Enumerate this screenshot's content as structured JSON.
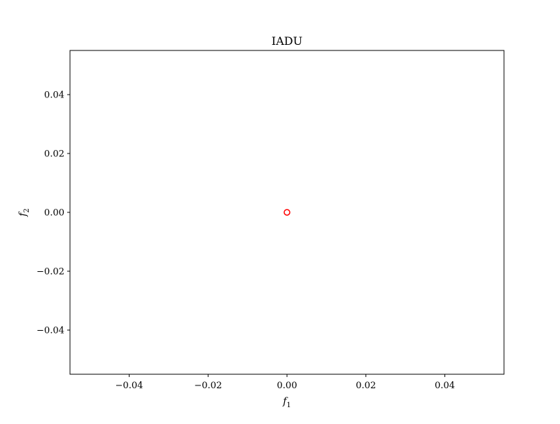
{
  "chart_data": {
    "type": "scatter",
    "title": "IADU",
    "xlabel": "f",
    "xlabel_sub": "1",
    "ylabel": "f",
    "ylabel_sub": "2",
    "xlim": [
      -0.055,
      0.055
    ],
    "ylim": [
      -0.055,
      0.055
    ],
    "xticks": [
      -0.04,
      -0.02,
      0.0,
      0.02,
      0.04
    ],
    "yticks": [
      -0.04,
      -0.02,
      0.0,
      0.02,
      0.04
    ],
    "xtick_labels": [
      "−0.04",
      "−0.02",
      "0.00",
      "0.02",
      "0.04"
    ],
    "ytick_labels": [
      "−0.04",
      "−0.02",
      "0.00",
      "0.02",
      "0.04"
    ],
    "grid": false,
    "series": [
      {
        "marker": "hollow-circle",
        "color": "#ff0000",
        "points": [
          {
            "x": 0.0,
            "y": 0.0
          }
        ]
      }
    ]
  }
}
